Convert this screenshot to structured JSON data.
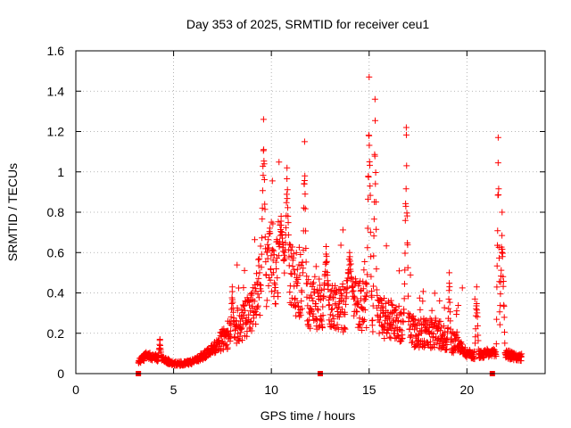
{
  "chart_data": {
    "type": "scatter",
    "title": "Day 353 of 2025, SRMTID for receiver ceu1",
    "xlabel": "GPS time / hours",
    "ylabel": "SRMTID / TECUs",
    "xlim": [
      0,
      24
    ],
    "ylim": [
      0,
      1.6
    ],
    "xticks": [
      0,
      5,
      10,
      15,
      20
    ],
    "xtick_labels": [
      "0",
      "5",
      "10",
      "15",
      "20"
    ],
    "yticks": [
      0,
      0.2,
      0.4,
      0.6,
      0.8,
      1.0,
      1.2,
      1.4,
      1.6
    ],
    "ytick_labels": [
      "0",
      "0.2",
      "0.4",
      "0.6",
      "0.8",
      "1",
      "1.2",
      "1.4",
      "1.6"
    ],
    "grid": true,
    "marker": "plus",
    "series_color": "#ff0000",
    "baseline_markers_x": [
      3.2,
      12.5,
      21.3
    ],
    "profile": [
      [
        3.2,
        0.06
      ],
      [
        3.6,
        0.09
      ],
      [
        4.0,
        0.08
      ],
      [
        4.5,
        0.07
      ],
      [
        5.0,
        0.05
      ],
      [
        5.5,
        0.05
      ],
      [
        6.0,
        0.06
      ],
      [
        6.5,
        0.09
      ],
      [
        7.0,
        0.12
      ],
      [
        7.5,
        0.16
      ],
      [
        8.0,
        0.22
      ],
      [
        8.5,
        0.26
      ],
      [
        9.0,
        0.3
      ],
      [
        9.5,
        0.48
      ],
      [
        10.0,
        0.55
      ],
      [
        10.5,
        0.55
      ],
      [
        11.0,
        0.48
      ],
      [
        11.5,
        0.42
      ],
      [
        12.0,
        0.35
      ],
      [
        12.5,
        0.35
      ],
      [
        13.0,
        0.32
      ],
      [
        13.5,
        0.32
      ],
      [
        14.0,
        0.35
      ],
      [
        14.5,
        0.35
      ],
      [
        15.0,
        0.32
      ],
      [
        15.5,
        0.28
      ],
      [
        16.0,
        0.27
      ],
      [
        16.5,
        0.25
      ],
      [
        17.0,
        0.22
      ],
      [
        17.5,
        0.2
      ],
      [
        18.0,
        0.2
      ],
      [
        18.5,
        0.2
      ],
      [
        19.0,
        0.17
      ],
      [
        19.5,
        0.15
      ],
      [
        20.0,
        0.1
      ],
      [
        20.5,
        0.09
      ],
      [
        21.0,
        0.1
      ],
      [
        21.5,
        0.1
      ],
      [
        22.0,
        0.1
      ],
      [
        22.5,
        0.08
      ],
      [
        22.8,
        0.08
      ]
    ],
    "spikes": [
      {
        "x": 4.3,
        "peak": 0.17,
        "width": 0.08
      },
      {
        "x": 8.0,
        "peak": 0.43,
        "width": 0.08
      },
      {
        "x": 9.6,
        "peak": 1.26,
        "width": 0.12
      },
      {
        "x": 10.5,
        "peak": 0.78,
        "width": 0.15
      },
      {
        "x": 10.8,
        "peak": 1.02,
        "width": 0.12
      },
      {
        "x": 11.7,
        "peak": 1.15,
        "width": 0.1
      },
      {
        "x": 12.8,
        "peak": 0.63,
        "width": 0.15
      },
      {
        "x": 14.0,
        "peak": 0.6,
        "width": 0.2
      },
      {
        "x": 15.0,
        "peak": 1.47,
        "width": 0.12
      },
      {
        "x": 15.3,
        "peak": 1.36,
        "width": 0.1
      },
      {
        "x": 16.9,
        "peak": 1.22,
        "width": 0.12
      },
      {
        "x": 19.1,
        "peak": 0.5,
        "width": 0.08
      },
      {
        "x": 20.5,
        "peak": 0.43,
        "width": 0.1
      },
      {
        "x": 21.6,
        "peak": 1.17,
        "width": 0.1
      },
      {
        "x": 21.8,
        "peak": 0.8,
        "width": 0.15
      }
    ],
    "n_points": 1500
  }
}
